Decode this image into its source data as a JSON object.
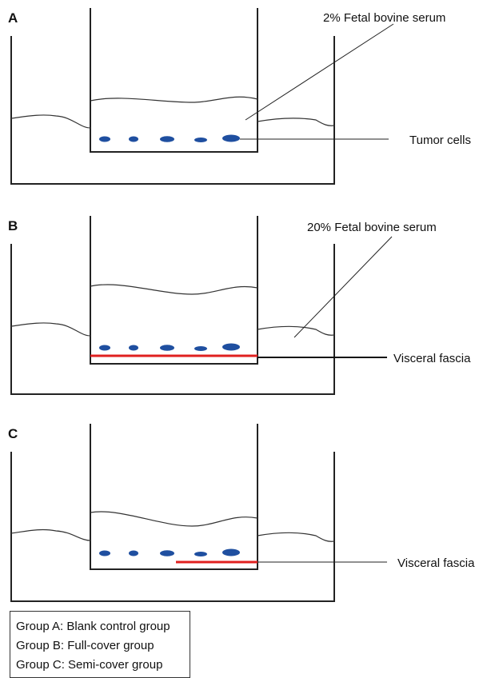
{
  "panels": [
    {
      "label": "A",
      "annotations": [
        "2% Fetal bovine serum",
        "Tumor cells"
      ]
    },
    {
      "label": "B",
      "annotations": [
        "20% Fetal bovine serum",
        "Visceral fascia"
      ]
    },
    {
      "label": "C",
      "annotations": [
        "Visceral fascia"
      ]
    }
  ],
  "legend": [
    "Group A: Blank control group",
    "Group B: Full-cover group",
    "Group C: Semi-cover group"
  ]
}
